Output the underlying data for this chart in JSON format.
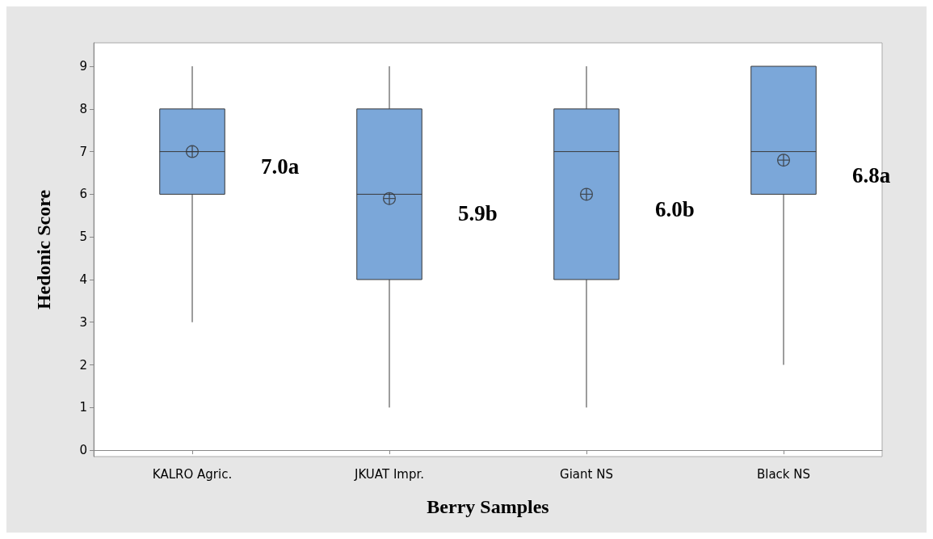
{
  "chart_data": {
    "type": "box",
    "xlabel": "Berry Samples",
    "ylabel": "Hedonic Score",
    "categories": [
      "KALRO Agric.",
      "JKUAT Impr.",
      "Giant NS",
      "Black NS"
    ],
    "boxes": [
      {
        "low": 3,
        "q1": 6,
        "median": 7,
        "q3": 8,
        "high": 9,
        "mean": 7.0
      },
      {
        "low": 1,
        "q1": 4,
        "median": 6,
        "q3": 8,
        "high": 9,
        "mean": 5.9
      },
      {
        "low": 1,
        "q1": 4,
        "median": 7,
        "q3": 8,
        "high": 9,
        "mean": 6.0
      },
      {
        "low": 2,
        "q1": 6,
        "median": 7,
        "q3": 9,
        "high": 9,
        "mean": 6.8
      }
    ],
    "color": "#7ba7d9",
    "ylim": [
      -0.15,
      9.55
    ],
    "yticks": [
      0,
      1,
      2,
      3,
      4,
      5,
      6,
      7,
      8,
      9
    ],
    "annotations": [
      "7.0a",
      "5.9b",
      "6.0b",
      "6.8a"
    ]
  }
}
